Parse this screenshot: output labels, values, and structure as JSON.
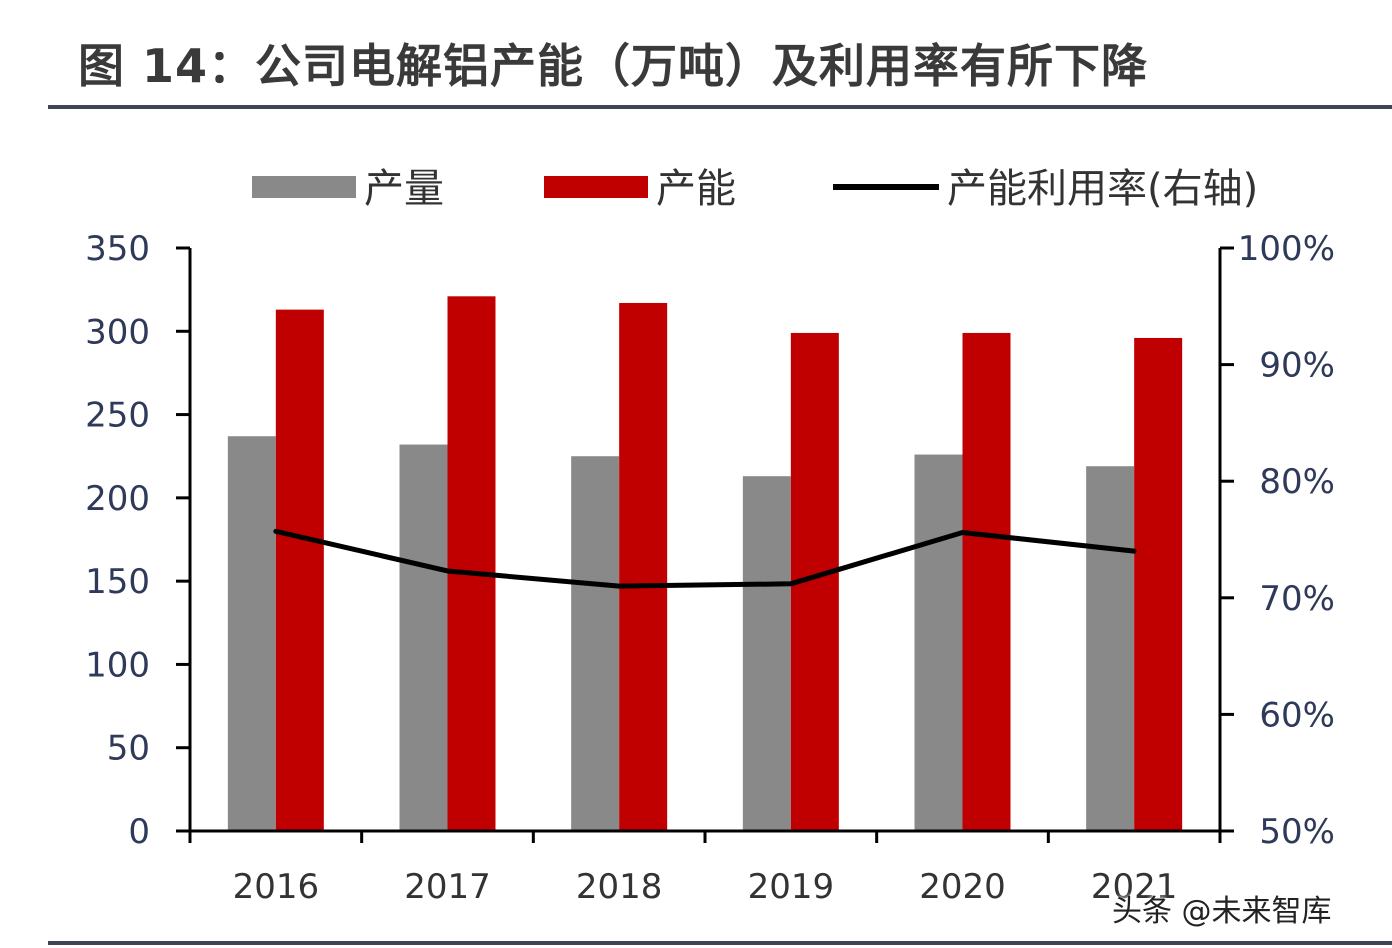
{
  "title": "图 14：公司电解铝产能（万吨）及利用率有所下降",
  "watermark": "头条 @未来智库",
  "chart_data": {
    "type": "bar",
    "categories": [
      "2016",
      "2017",
      "2018",
      "2019",
      "2020",
      "2021"
    ],
    "series": [
      {
        "name": "产量",
        "kind": "bar",
        "axis": "left",
        "color": "#898989",
        "values": [
          237,
          232,
          225,
          213,
          226,
          219
        ]
      },
      {
        "name": "产能",
        "kind": "bar",
        "axis": "left",
        "color": "#c00000",
        "values": [
          313,
          321,
          317,
          299,
          299,
          296
        ]
      },
      {
        "name": "产能利用率(右轴)",
        "kind": "line",
        "axis": "right",
        "color": "#000000",
        "values": [
          75.7,
          72.3,
          71.0,
          71.2,
          75.6,
          74.0
        ]
      }
    ],
    "left_axis": {
      "ylim": [
        0,
        350
      ],
      "ticks": [
        0,
        50,
        100,
        150,
        200,
        250,
        300,
        350
      ]
    },
    "right_axis": {
      "ylim": [
        50,
        100
      ],
      "ticks": [
        "50%",
        "60%",
        "70%",
        "80%",
        "90%",
        "100%"
      ]
    },
    "legend_position": "top"
  }
}
